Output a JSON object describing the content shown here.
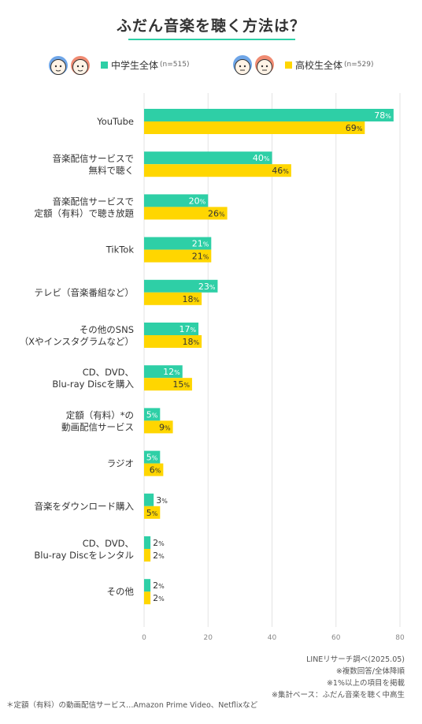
{
  "title": "ふだん音楽を聴く方法は？",
  "legend": {
    "middle": {
      "label": "中学生全体",
      "n": "(n=515)"
    },
    "high": {
      "label": "高校生全体",
      "n": "(n=529)"
    }
  },
  "notes": [
    "LINEリサーチ調べ(2025.05)",
    "※複数回答/全体降順",
    "※1%以上の項目を掲載",
    "※集計ベース：ふだん音楽を聴く中高生"
  ],
  "footnote": "＊定額（有料）の動画配信サービス…Amazon Prime Video、Netflixなど",
  "colors": {
    "middle": "#2ecfa6",
    "high": "#ffd600",
    "grid": "#e3e3e3",
    "text": "#333333"
  },
  "chart_data": {
    "type": "bar",
    "orientation": "horizontal",
    "unit": "%",
    "categories": [
      [
        "YouTube"
      ],
      [
        "音楽配信サービスで",
        "無料で聴く"
      ],
      [
        "音楽配信サービスで",
        "定額（有料）で聴き放題"
      ],
      [
        "TikTok"
      ],
      [
        "テレビ（音楽番組など）"
      ],
      [
        "その他のSNS",
        "（Xやインスタグラムなど）"
      ],
      [
        "CD、DVD、",
        "Blu-ray Discを購入"
      ],
      [
        "定額（有料）*の",
        "動画配信サービス"
      ],
      [
        "ラジオ"
      ],
      [
        "音楽をダウンロード購入"
      ],
      [
        "CD、DVD、",
        "Blu-ray Discをレンタル"
      ],
      [
        "その他"
      ]
    ],
    "series": [
      {
        "name": "中学生全体",
        "values": [
          78,
          40,
          20,
          21,
          23,
          17,
          12,
          5,
          5,
          3,
          2,
          2
        ]
      },
      {
        "name": "高校生全体",
        "values": [
          69,
          46,
          26,
          21,
          18,
          18,
          15,
          9,
          6,
          5,
          2,
          2
        ]
      }
    ],
    "xlim": [
      0,
      80
    ],
    "xticks": [
      0,
      20,
      40,
      60,
      80
    ],
    "grid": true
  }
}
